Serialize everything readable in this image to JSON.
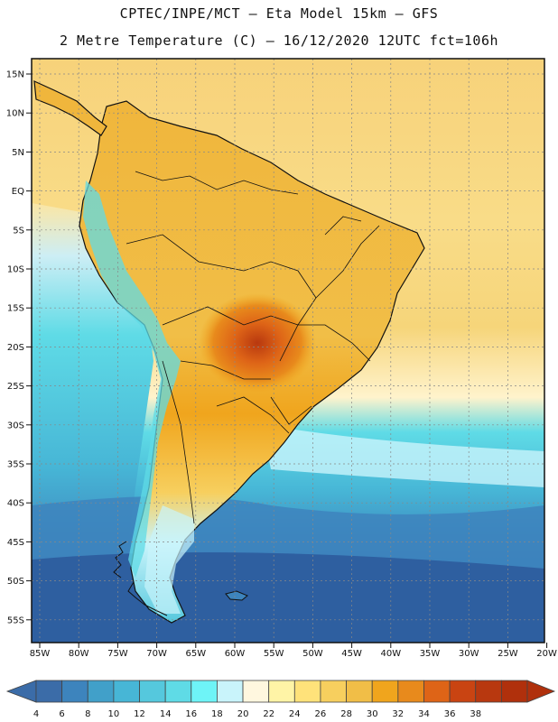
{
  "header": {
    "title_line1": "CPTEC/INPE/MCT –  Eta Model 15km – GFS",
    "title_line2": "2 Metre Temperature (C) – 16/12/2020 12UTC fct=106h"
  },
  "map": {
    "lat_labels": [
      "15N",
      "10N",
      "5N",
      "EQ",
      "5S",
      "10S",
      "15S",
      "20S",
      "25S",
      "30S",
      "35S",
      "40S",
      "45S",
      "50S",
      "55S"
    ],
    "lon_labels": [
      "85W",
      "80W",
      "75W",
      "70W",
      "65W",
      "60W",
      "55W",
      "50W",
      "45W",
      "40W",
      "35W",
      "30W",
      "25W",
      "20W"
    ]
  },
  "legend": {
    "labels": [
      "4",
      "6",
      "8",
      "10",
      "12",
      "14",
      "16",
      "18",
      "20",
      "22",
      "24",
      "26",
      "28",
      "30",
      "32",
      "34",
      "36",
      "38"
    ],
    "colors": [
      "#3b6ca8",
      "#3d84bd",
      "#41a0c9",
      "#47b6d6",
      "#55c8dd",
      "#5fdbe6",
      "#6ef4f7",
      "#c9f4fb",
      "#fff7df",
      "#fff4a6",
      "#ffe27a",
      "#f7cf5e",
      "#f1be47",
      "#f0a51d",
      "#e88a1c",
      "#de6417",
      "#c94412",
      "#b8380f",
      "#b0300c"
    ]
  }
}
